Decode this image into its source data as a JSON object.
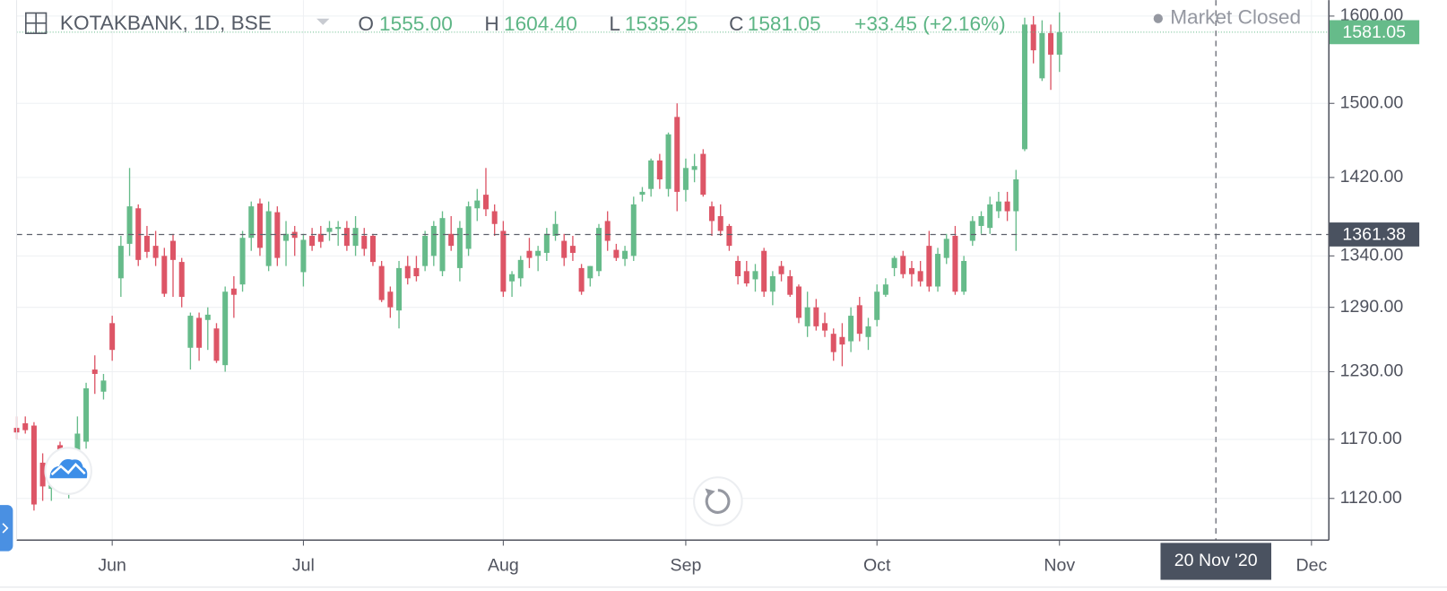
{
  "header": {
    "symbol": "KOTAKBANK, 1D, BSE",
    "open_label": "O",
    "open": "1555.00",
    "high_label": "H",
    "high": "1604.40",
    "low_label": "L",
    "low": "1535.25",
    "close_label": "C",
    "close": "1581.05",
    "change": "+33.45 (+2.16%)",
    "status": "Market Closed"
  },
  "chart_data": {
    "type": "candlestick",
    "log": true,
    "grid": true,
    "up_color": "#66bb8a",
    "down_color": "#dd5566",
    "xlim": [
      0,
      151
    ],
    "ylim": [
      1086,
      1619
    ],
    "xticks": [
      {
        "value": 11,
        "label": "Jun"
      },
      {
        "value": 33,
        "label": "Jul"
      },
      {
        "value": 56,
        "label": "Aug"
      },
      {
        "value": 77,
        "label": "Sep"
      },
      {
        "value": 99,
        "label": "Oct"
      },
      {
        "value": 120,
        "label": "Nov"
      },
      {
        "value": 149,
        "label": "Dec"
      }
    ],
    "yticks": [
      {
        "value": 1120,
        "label": "1120.00"
      },
      {
        "value": 1170,
        "label": "1170.00"
      },
      {
        "value": 1230,
        "label": "1230.00"
      },
      {
        "value": 1290,
        "label": "1290.00"
      },
      {
        "value": 1340,
        "label": "1340.00"
      },
      {
        "value": 1420,
        "label": "1420.00"
      },
      {
        "value": 1500,
        "label": "1500.00"
      },
      {
        "value": 1600,
        "label": "1600.00"
      }
    ],
    "open": [
      1180,
      1184,
      1182,
      1150,
      1128,
      1165,
      1140,
      1155,
      1168,
      1232,
      1212,
      1275,
      1318,
      1352,
      1388,
      1360,
      1350,
      1340,
      1355,
      1334,
      1252,
      1280,
      1278,
      1270,
      1236,
      1308,
      1312,
      1358,
      1393,
      1330,
      1384,
      1355,
      1364,
      1324,
      1360,
      1362,
      1364,
      1367,
      1368,
      1350,
      1360,
      1360,
      1330,
      1305,
      1287,
      1330,
      1328,
      1330,
      1340,
      1325,
      1362,
      1328,
      1347,
      1388,
      1402,
      1385,
      1365,
      1315,
      1318,
      1345,
      1340,
      1343,
      1360,
      1355,
      1350,
      1328,
      1318,
      1325,
      1375,
      1346,
      1337,
      1340,
      1402,
      1408,
      1438,
      1408,
      1485,
      1407,
      1428,
      1445,
      1390,
      1380,
      1370,
      1335,
      1325,
      1317,
      1345,
      1305,
      1330,
      1320,
      1310,
      1272,
      1290,
      1275,
      1265,
      1262,
      1258,
      1292,
      1262,
      1278,
      1302,
      1328,
      1340,
      1328,
      1325,
      1350,
      1310,
      1338,
      1360,
      1305,
      1355,
      1370,
      1368,
      1385,
      1395,
      1385,
      1450,
      1590,
      1528,
      1580,
      1555
    ],
    "high": [
      1190,
      1190,
      1185,
      1158,
      1155,
      1168,
      1155,
      1190,
      1220,
      1245,
      1228,
      1282,
      1360,
      1430,
      1392,
      1370,
      1365,
      1348,
      1362,
      1338,
      1285,
      1285,
      1290,
      1275,
      1310,
      1320,
      1365,
      1395,
      1398,
      1395,
      1390,
      1375,
      1370,
      1362,
      1368,
      1370,
      1375,
      1375,
      1375,
      1380,
      1368,
      1362,
      1335,
      1310,
      1335,
      1340,
      1340,
      1365,
      1375,
      1385,
      1380,
      1375,
      1395,
      1408,
      1430,
      1392,
      1375,
      1325,
      1340,
      1358,
      1350,
      1368,
      1385,
      1362,
      1360,
      1332,
      1330,
      1372,
      1385,
      1352,
      1350,
      1400,
      1410,
      1440,
      1445,
      1468,
      1500,
      1440,
      1445,
      1450,
      1395,
      1392,
      1372,
      1340,
      1335,
      1332,
      1348,
      1325,
      1335,
      1326,
      1312,
      1305,
      1298,
      1285,
      1270,
      1275,
      1290,
      1300,
      1280,
      1312,
      1318,
      1340,
      1345,
      1335,
      1335,
      1365,
      1348,
      1362,
      1370,
      1340,
      1380,
      1385,
      1400,
      1405,
      1405,
      1428,
      1598,
      1600,
      1595,
      1590,
      1604.4
    ],
    "low": [
      1170,
      1175,
      1110,
      1118,
      1118,
      1135,
      1120,
      1150,
      1162,
      1210,
      1205,
      1240,
      1300,
      1340,
      1330,
      1338,
      1330,
      1300,
      1300,
      1290,
      1232,
      1240,
      1250,
      1238,
      1230,
      1280,
      1305,
      1345,
      1340,
      1325,
      1330,
      1330,
      1340,
      1310,
      1345,
      1348,
      1355,
      1350,
      1345,
      1340,
      1340,
      1330,
      1295,
      1280,
      1270,
      1312,
      1315,
      1325,
      1330,
      1320,
      1345,
      1315,
      1340,
      1375,
      1380,
      1360,
      1300,
      1300,
      1310,
      1328,
      1325,
      1335,
      1355,
      1330,
      1335,
      1302,
      1310,
      1320,
      1345,
      1335,
      1330,
      1335,
      1395,
      1400,
      1408,
      1400,
      1385,
      1395,
      1415,
      1400,
      1360,
      1360,
      1345,
      1312,
      1310,
      1305,
      1300,
      1292,
      1315,
      1300,
      1275,
      1262,
      1268,
      1262,
      1240,
      1235,
      1248,
      1258,
      1250,
      1272,
      1300,
      1320,
      1318,
      1310,
      1310,
      1305,
      1305,
      1332,
      1302,
      1302,
      1350,
      1362,
      1362,
      1378,
      1375,
      1345,
      1448,
      1545,
      1525,
      1515,
      1535.25
    ],
    "close": [
      1176,
      1178,
      1115,
      1130,
      1140,
      1142,
      1152,
      1175,
      1215,
      1228,
      1222,
      1250,
      1350,
      1390,
      1336,
      1344,
      1338,
      1303,
      1336,
      1300,
      1282,
      1252,
      1283,
      1240,
      1305,
      1302,
      1358,
      1390,
      1348,
      1385,
      1338,
      1362,
      1358,
      1356,
      1350,
      1354,
      1368,
      1369,
      1350,
      1368,
      1347,
      1334,
      1297,
      1290,
      1328,
      1318,
      1320,
      1360,
      1370,
      1378,
      1350,
      1368,
      1390,
      1396,
      1387,
      1372,
      1305,
      1322,
      1336,
      1338,
      1345,
      1362,
      1372,
      1338,
      1343,
      1305,
      1330,
      1368,
      1355,
      1338,
      1345,
      1392,
      1405,
      1438,
      1418,
      1466,
      1405,
      1430,
      1432,
      1402,
      1375,
      1365,
      1350,
      1320,
      1313,
      1325,
      1305,
      1320,
      1322,
      1302,
      1280,
      1290,
      1272,
      1268,
      1248,
      1255,
      1282,
      1265,
      1272,
      1305,
      1312,
      1338,
      1322,
      1322,
      1315,
      1310,
      1342,
      1357,
      1305,
      1335,
      1375,
      1380,
      1392,
      1395,
      1385,
      1418,
      1590,
      1560,
      1580,
      1555,
      1581.05
    ],
    "last_price_label": "1581.05",
    "crosshair": {
      "x": 138,
      "price": 1361.38,
      "price_label": "1361.38",
      "date_label": "20 Nov '20"
    }
  }
}
